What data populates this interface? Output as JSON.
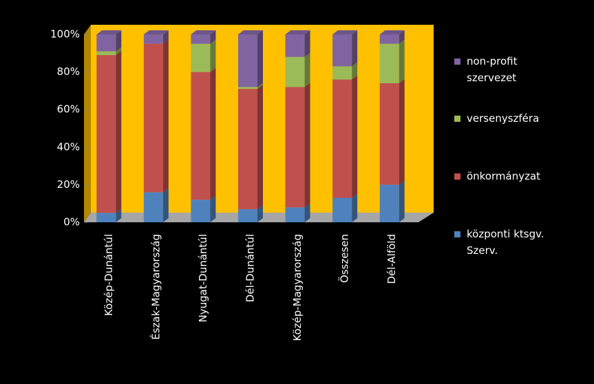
{
  "chart_data": {
    "type": "bar3d_stacked",
    "categories": [
      "Közép-Dunántúl",
      "Észak-Magyarország",
      "Nyugat-Dunántúl",
      "Dél-Dunántúl",
      "Közép-Magyarország",
      "Összesen",
      "Dél-Alföld"
    ],
    "series": [
      {
        "name": "központi ktsgv. Szerv.",
        "color": "#4f81bd",
        "values": [
          5,
          16,
          12,
          7,
          8,
          13,
          20
        ]
      },
      {
        "name": "önkormányzat",
        "color": "#c0504d",
        "values": [
          84,
          79,
          68,
          64,
          64,
          63,
          54
        ]
      },
      {
        "name": "versenyszféra",
        "color": "#9bbb59",
        "values": [
          2,
          0,
          15,
          1,
          16,
          7,
          21
        ]
      },
      {
        "name": "non-profit szervezet",
        "color": "#8064a2",
        "values": [
          9,
          5,
          5,
          28,
          12,
          17,
          5
        ]
      }
    ],
    "ylim": [
      0,
      100
    ],
    "yticks": [
      {
        "value": 0,
        "label": "0%"
      },
      {
        "value": 20,
        "label": "20%"
      },
      {
        "value": 40,
        "label": "40%"
      },
      {
        "value": 60,
        "label": "60%"
      },
      {
        "value": 80,
        "label": "80%"
      },
      {
        "value": 100,
        "label": "100%"
      }
    ],
    "legend": "right"
  }
}
